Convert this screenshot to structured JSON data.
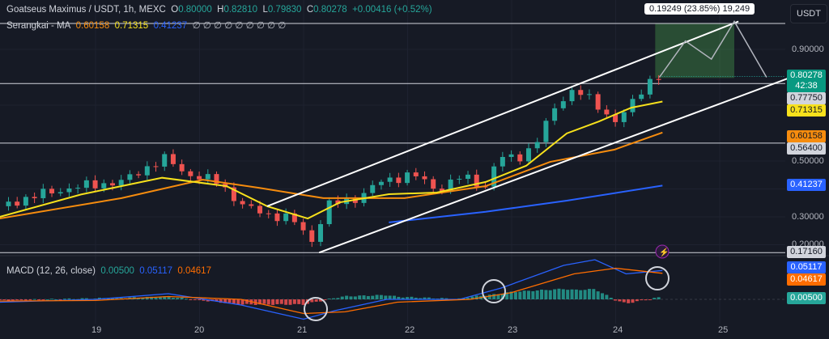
{
  "header": {
    "symbol": "Goatseus Maximus / USDT, 1h, MEXC",
    "o_label": "O",
    "o": "0.80000",
    "h_label": "H",
    "h": "0.82810",
    "l_label": "L",
    "l": "0.79830",
    "c_label": "C",
    "c": "0.80278",
    "change": "+0.00416 (+0.52%)"
  },
  "ma_legend": {
    "name": "Serangkai - MA",
    "v1": "0.60158",
    "v2": "0.71315",
    "v3": "0.41237",
    "rest": "∅ ∅ ∅ ∅ ∅ ∅ ∅ ∅ ∅"
  },
  "macd_legend": {
    "name": "MACD (12, 26, close)",
    "hist": "0.00500",
    "macd": "0.05117",
    "signal": "0.04617"
  },
  "currency": "USDT",
  "measure_label": "0.19249 (23.85%) 19,249",
  "price_labels": {
    "last": "0.80278",
    "countdown": "42:38",
    "l1": "0.77750",
    "ma_yellow": "0.71315",
    "ma_orange": "0.60158",
    "l2": "0.56400",
    "ma_blue": "0.41237",
    "l3": "0.17160",
    "macd": "0.05117",
    "signal": "0.04617",
    "hist": "0.00500"
  },
  "colors": {
    "up": "#26a69a",
    "down": "#ef5350",
    "ma_yellow": "#f7e11c",
    "ma_orange": "#f68c0e",
    "ma_blue": "#2962ff",
    "macd": "#2962ff",
    "signal": "#ff6d00"
  },
  "chart_data": {
    "type": "candlestick",
    "x_ticks": [
      "19",
      "20",
      "21",
      "22",
      "23",
      "24",
      "25"
    ],
    "y_ticks": [
      "0.90000",
      "0.50000",
      "0.30000",
      "0.20000"
    ],
    "ylim": [
      0.17,
      1.0
    ],
    "price_path": [
      [
        18.08,
        0.338
      ],
      [
        18.47,
        0.381
      ],
      [
        18.86,
        0.41
      ],
      [
        19.25,
        0.425
      ],
      [
        19.52,
        0.483
      ],
      [
        19.68,
        0.51
      ],
      [
        19.87,
        0.454
      ],
      [
        20.18,
        0.425
      ],
      [
        20.42,
        0.338
      ],
      [
        20.65,
        0.309
      ],
      [
        20.88,
        0.294
      ],
      [
        21.12,
        0.2
      ],
      [
        21.19,
        0.338
      ],
      [
        21.51,
        0.367
      ],
      [
        21.74,
        0.425
      ],
      [
        22.05,
        0.454
      ],
      [
        22.28,
        0.396
      ],
      [
        22.52,
        0.445
      ],
      [
        22.75,
        0.41
      ],
      [
        22.87,
        0.512
      ],
      [
        23.06,
        0.512
      ],
      [
        23.22,
        0.555
      ],
      [
        23.45,
        0.714
      ],
      [
        23.61,
        0.758
      ],
      [
        23.77,
        0.714
      ],
      [
        24.0,
        0.642
      ],
      [
        24.15,
        0.7
      ],
      [
        24.31,
        0.787
      ],
      [
        24.42,
        0.8028
      ]
    ],
    "ma_yellow": [
      [
        18.08,
        0.3
      ],
      [
        18.86,
        0.38
      ],
      [
        19.64,
        0.44
      ],
      [
        20.26,
        0.41
      ],
      [
        20.65,
        0.338
      ],
      [
        21.04,
        0.294
      ],
      [
        21.35,
        0.352
      ],
      [
        21.82,
        0.381
      ],
      [
        22.28,
        0.387
      ],
      [
        22.75,
        0.425
      ],
      [
        23.14,
        0.483
      ],
      [
        23.53,
        0.599
      ],
      [
        23.84,
        0.642
      ],
      [
        24.15,
        0.691
      ],
      [
        24.45,
        0.713
      ]
    ],
    "ma_orange": [
      [
        18.08,
        0.294
      ],
      [
        19.25,
        0.367
      ],
      [
        20.03,
        0.433
      ],
      [
        20.57,
        0.404
      ],
      [
        21.19,
        0.367
      ],
      [
        21.97,
        0.367
      ],
      [
        22.75,
        0.41
      ],
      [
        23.37,
        0.497
      ],
      [
        23.99,
        0.541
      ],
      [
        24.45,
        0.602
      ]
    ],
    "ma_blue": [
      [
        21.82,
        0.28
      ],
      [
        22.75,
        0.318
      ],
      [
        23.53,
        0.358
      ],
      [
        24.45,
        0.412
      ]
    ],
    "macd": [
      [
        18.08,
        -0.005
      ],
      [
        19.0,
        0.0
      ],
      [
        19.7,
        0.01
      ],
      [
        20.4,
        -0.01
      ],
      [
        21.0,
        -0.035
      ],
      [
        21.3,
        -0.02
      ],
      [
        21.8,
        0.0
      ],
      [
        22.5,
        0.0
      ],
      [
        22.9,
        0.02
      ],
      [
        23.5,
        0.06
      ],
      [
        23.8,
        0.07
      ],
      [
        24.1,
        0.045
      ],
      [
        24.45,
        0.051
      ]
    ],
    "signal": [
      [
        18.08,
        -0.003
      ],
      [
        19.0,
        -0.002
      ],
      [
        19.7,
        0.005
      ],
      [
        20.4,
        0.0
      ],
      [
        21.0,
        -0.025
      ],
      [
        21.4,
        -0.022
      ],
      [
        21.9,
        -0.005
      ],
      [
        22.6,
        0.0
      ],
      [
        23.0,
        0.012
      ],
      [
        23.6,
        0.045
      ],
      [
        24.0,
        0.055
      ],
      [
        24.45,
        0.046
      ]
    ],
    "annotations": {
      "channel_upper": [
        [
          20.65,
          0.338
        ],
        [
          25.18,
          1.0
        ]
      ],
      "channel_lower": [
        [
          21.15,
          0.172
        ],
        [
          25.65,
          0.795
        ]
      ],
      "levels": [
        0.9927,
        0.7775,
        0.564,
        0.1716
      ],
      "projection": [
        [
          24.42,
          0.8
        ],
        [
          24.67,
          0.93
        ],
        [
          24.92,
          0.865
        ],
        [
          25.14,
          1.0
        ],
        [
          25.45,
          0.8
        ]
      ],
      "target_box": [
        [
          24.38,
          25.14
        ],
        [
          0.7975,
          0.9927
        ]
      ]
    }
  }
}
